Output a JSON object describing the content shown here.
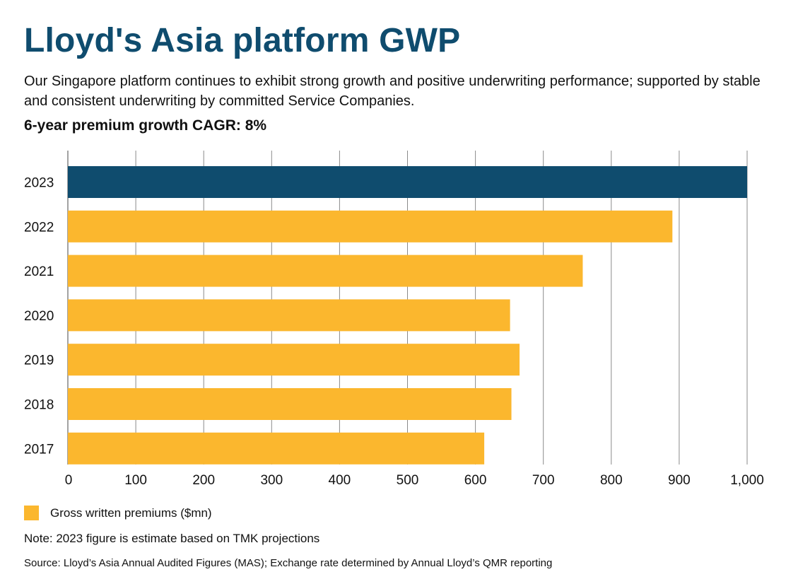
{
  "title": "Lloyd's Asia platform GWP",
  "subtitle": "Our Singapore platform continues to exhibit strong growth and positive underwriting performance; supported by stable and consistent underwriting by committed Service Companies.",
  "subheading": "6-year premium growth CAGR: 8%",
  "legend": {
    "label": "Gross written premiums ($mn)",
    "color": "#fbb72e"
  },
  "note": "Note: 2023 figure is estimate based on TMK projections",
  "source": "Source: Lloyd’s Asia Annual Audited Figures (MAS); Exchange rate determined by Annual Lloyd’s QMR reporting",
  "chart_data": {
    "type": "bar",
    "orientation": "horizontal",
    "categories": [
      "2023",
      "2022",
      "2021",
      "2020",
      "2019",
      "2018",
      "2017"
    ],
    "series": [
      {
        "name": "Gross written premiums ($mn)",
        "values": [
          1000,
          890,
          758,
          651,
          665,
          653,
          613
        ]
      }
    ],
    "highlight": {
      "category": "2023",
      "color": "#0f4c6e"
    },
    "bar_color": "#fbb72e",
    "xlim": [
      0,
      1000
    ],
    "x_ticks": [
      0,
      100,
      200,
      300,
      400,
      500,
      600,
      700,
      800,
      900,
      1000
    ],
    "x_tick_labels": [
      "0",
      "100",
      "200",
      "300",
      "400",
      "500",
      "600",
      "700",
      "800",
      "900",
      "1,000"
    ],
    "grid": "vertical"
  }
}
